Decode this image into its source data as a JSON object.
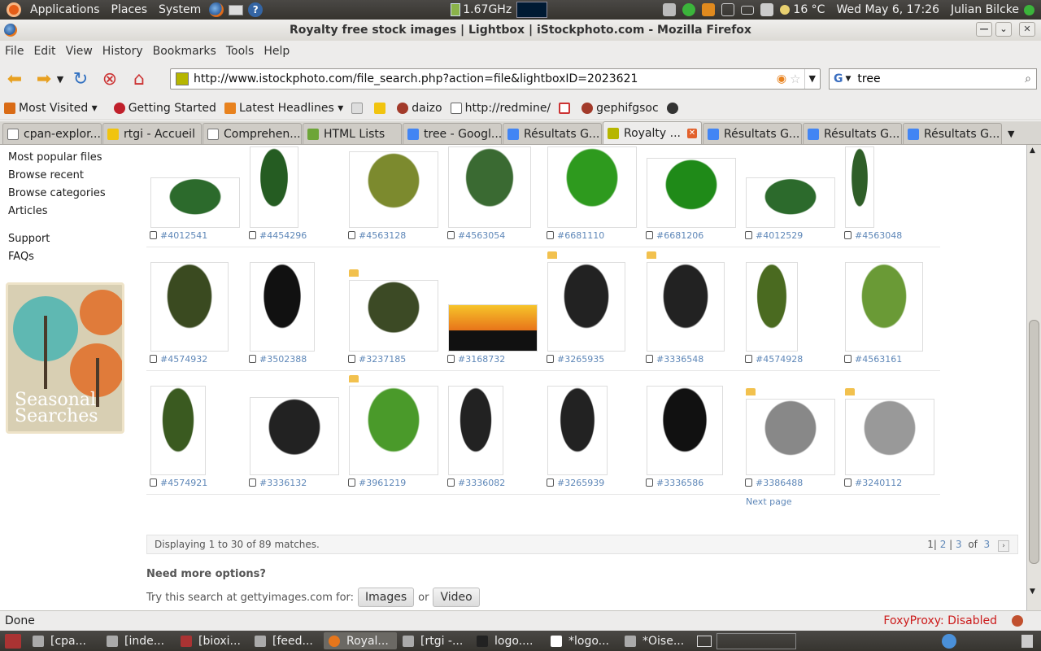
{
  "top_panel": {
    "menus": [
      "Applications",
      "Places",
      "System"
    ],
    "cpu_freq": "1.67GHz",
    "weather": "16 °C",
    "clock": "Wed May  6, 17:26",
    "user": "Julian Bilcke"
  },
  "window": {
    "title": "Royalty free stock images | Lightbox | iStockphoto.com - Mozilla Firefox"
  },
  "menubar": [
    "File",
    "Edit",
    "View",
    "History",
    "Bookmarks",
    "Tools",
    "Help"
  ],
  "nav": {
    "url": "http://www.istockphoto.com/file_search.php?action=file&lightboxID=2023621",
    "search_value": "tree"
  },
  "bookmarks": [
    "Most Visited ▾",
    "Getting Started",
    "Latest Headlines ▾",
    "daizo",
    "http://redmine/",
    "gephifgsoc"
  ],
  "tabs": [
    "cpan-explor...",
    "rtgi - Accueil",
    "Comprehen...",
    "HTML Lists",
    "tree - Googl...",
    "Résultats G...",
    "Royalty ...",
    "Résultats G...",
    "Résultats G...",
    "Résultats G..."
  ],
  "sidebar": {
    "links": [
      "Most popular files",
      "Browse recent",
      "Browse categories",
      "Articles"
    ],
    "links2": [
      "Support",
      "FAQs"
    ],
    "promo_title": "Seasonal Searches"
  },
  "grid": {
    "rows": [
      [
        "#4012541",
        "#4454296",
        "#4563128",
        "#4563054",
        "#6681110",
        "#6681206",
        "#4012529",
        "#4563048"
      ],
      [
        "#4574932",
        "#3502388",
        "#3237185",
        "#3168732",
        "#3265935",
        "#3336548",
        "#4574928",
        "#4563161"
      ],
      [
        "#4574921",
        "#3336132",
        "#3961219",
        "#3336082",
        "#3265939",
        "#3336586",
        "#3386488",
        "#3240112"
      ]
    ],
    "next_page": "Next page"
  },
  "results": {
    "summary": "Displaying 1 to 30 of 89 matches.",
    "pages": [
      "1",
      "2",
      "3"
    ],
    "of_label": "of",
    "total_pages": "3"
  },
  "more": {
    "heading": "Need more options?",
    "prefix": "Try this search at gettyimages.com for:",
    "images": "Images",
    "or": "or",
    "video": "Video"
  },
  "status": {
    "text": "Done",
    "foxyproxy": "FoxyProxy: Disabled"
  },
  "taskbar": [
    "[cpa...",
    "[inde...",
    "[bioxi...",
    "[feed...",
    "Royal...",
    "[rtgi -...",
    "logo....",
    "*logo...",
    "*Oise..."
  ]
}
